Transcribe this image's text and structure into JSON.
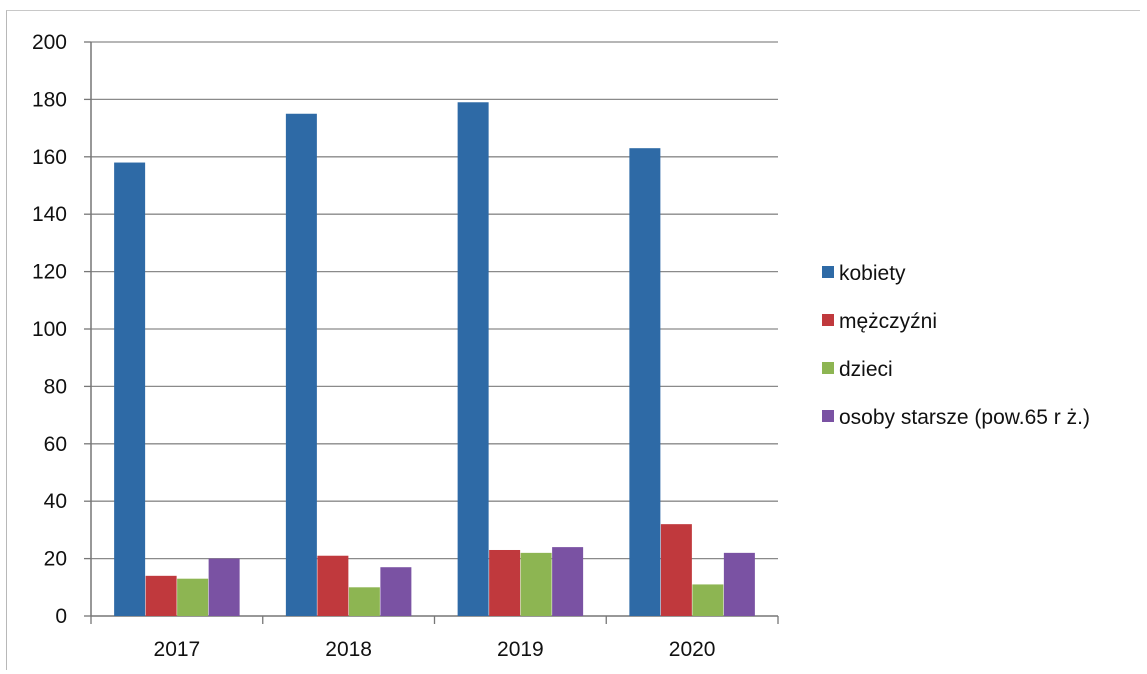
{
  "chart_data": {
    "type": "bar",
    "title": "",
    "xlabel": "",
    "ylabel": "",
    "categories": [
      "2017",
      "2018",
      "2019",
      "2020"
    ],
    "ylim": [
      0,
      200
    ],
    "yticks": [
      0,
      20,
      40,
      60,
      80,
      100,
      120,
      140,
      160,
      180,
      200
    ],
    "grid": true,
    "legend_position": "right",
    "series": [
      {
        "name": "kobiety",
        "color": "#2e6aa6",
        "values": [
          158,
          175,
          179,
          163
        ]
      },
      {
        "name": "mężczyźni",
        "color": "#c0393d",
        "values": [
          14,
          21,
          23,
          32
        ]
      },
      {
        "name": "dzieci",
        "color": "#8db552",
        "values": [
          13,
          10,
          22,
          11
        ]
      },
      {
        "name": "osoby starsze (pow.65 r ż.)",
        "color": "#7a52a3",
        "values": [
          20,
          17,
          24,
          22
        ]
      }
    ]
  }
}
